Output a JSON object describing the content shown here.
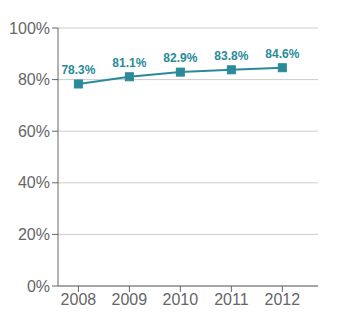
{
  "chart_data": {
    "type": "line",
    "x": [
      2008,
      2009,
      2010,
      2011,
      2012
    ],
    "values": [
      0.783,
      0.811,
      0.829,
      0.838,
      0.846
    ],
    "value_labels": [
      "78.3%",
      "81.1%",
      "82.9%",
      "83.8%",
      "84.6%"
    ],
    "data_labels": true,
    "color": "#2a8a9a",
    "marker": "square",
    "xlim": [
      2007.6,
      2012.7
    ],
    "xticks": [
      2008,
      2009,
      2010,
      2011,
      2012
    ],
    "ylim": [
      0,
      1.0
    ],
    "yticks": [
      {
        "value": 0.0,
        "label": "0%"
      },
      {
        "value": 0.2,
        "label": "20%"
      },
      {
        "value": 0.4,
        "label": "40%"
      },
      {
        "value": 0.6,
        "label": "60%"
      },
      {
        "value": 0.8,
        "label": "80%"
      },
      {
        "value": 1.0,
        "label": "100%"
      }
    ],
    "grid": true
  }
}
